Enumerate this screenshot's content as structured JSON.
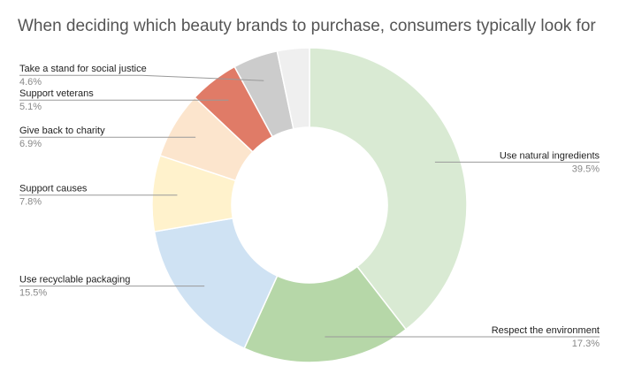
{
  "chart_data": {
    "type": "pie",
    "donut": true,
    "title": "When deciding which beauty brands to purchase, consumers typically look for",
    "categories": [
      "Use natural ingredients",
      "Respect the environment",
      "Use recyclable packaging",
      "Support causes",
      "Give back to charity",
      "Support veterans",
      "Take a stand for social justice",
      null
    ],
    "values": [
      39.5,
      17.3,
      15.5,
      7.8,
      6.9,
      5.1,
      4.6,
      3.3
    ],
    "value_labels": [
      "39.5%",
      "17.3%",
      "15.5%",
      "7.8%",
      "6.9%",
      "5.1%",
      "4.6%",
      null
    ],
    "colors": [
      "#d9ead3",
      "#b6d7a8",
      "#cfe2f3",
      "#fff2cc",
      "#fce5cd",
      "#e07b67",
      "#cccccc",
      "#efefef"
    ]
  }
}
